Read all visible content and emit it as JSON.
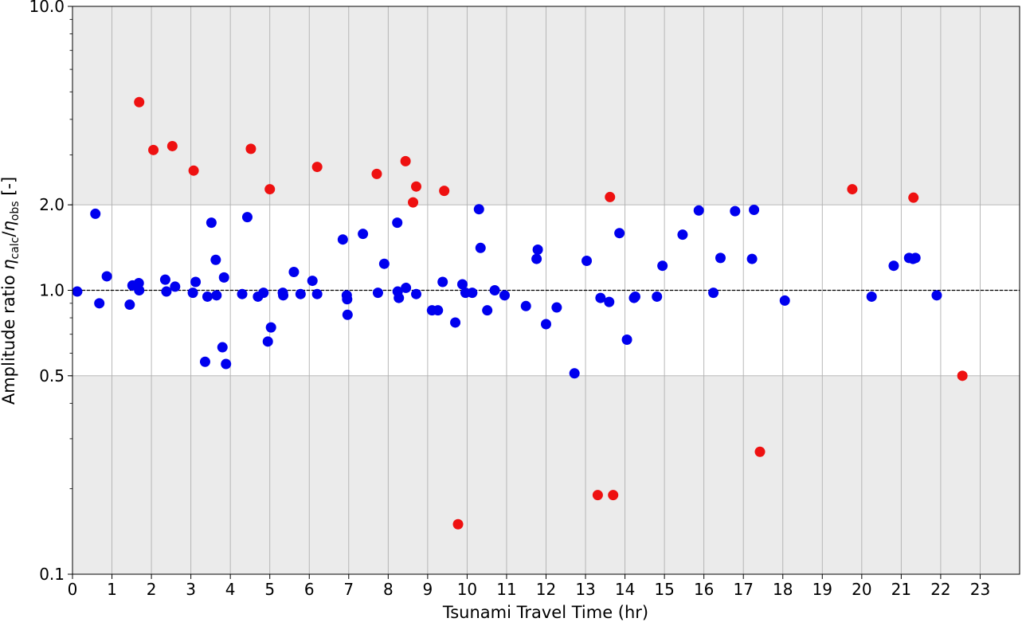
{
  "chart_data": {
    "type": "scatter",
    "title": "",
    "xlabel": "Tsunami Travel Time (hr)",
    "ylabel": {
      "prefix": "Amplitude ratio ",
      "eta1": "η",
      "sub1": "calc",
      "slash": "/",
      "eta2": "η",
      "sub2": "obs",
      "suffix": " [-]"
    },
    "xlim": [
      0,
      24
    ],
    "ylim": [
      0.1,
      10.0
    ],
    "yscale": "log",
    "grid": true,
    "xticks": [
      0,
      1,
      2,
      3,
      4,
      5,
      6,
      7,
      8,
      9,
      10,
      11,
      12,
      13,
      14,
      15,
      16,
      17,
      18,
      19,
      20,
      21,
      22,
      23
    ],
    "xtick_labels": [
      "0",
      "1",
      "2",
      "3",
      "4",
      "5",
      "6",
      "7",
      "8",
      "9",
      "10",
      "11",
      "12",
      "13",
      "14",
      "15",
      "16",
      "17",
      "18",
      "19",
      "20",
      "21",
      "22",
      "23"
    ],
    "yticks": [
      0.1,
      0.5,
      1.0,
      2.0,
      10.0
    ],
    "ytick_labels": [
      "0.1",
      "0.5",
      "1.0",
      "2.0",
      "10.0"
    ],
    "shaded_bands": [
      {
        "ymin": 2.0,
        "ymax": 10.0,
        "color": "#ebebeb"
      },
      {
        "ymin": 0.1,
        "ymax": 0.5,
        "color": "#ebebeb"
      }
    ],
    "reference_line": {
      "y": 1.0,
      "style": "dashed",
      "color": "#000000"
    },
    "series": [
      {
        "color": "#0000ee",
        "points": [
          [
            0.12,
            0.99
          ],
          [
            0.58,
            1.86
          ],
          [
            0.68,
            0.9
          ],
          [
            0.87,
            1.12
          ],
          [
            1.45,
            0.89
          ],
          [
            1.52,
            1.04
          ],
          [
            1.68,
            1.06
          ],
          [
            1.69,
            1.0
          ],
          [
            2.35,
            1.09
          ],
          [
            2.38,
            0.99
          ],
          [
            2.6,
            1.03
          ],
          [
            3.05,
            0.98
          ],
          [
            3.12,
            1.07
          ],
          [
            3.42,
            0.95
          ],
          [
            3.52,
            1.73
          ],
          [
            3.63,
            1.28
          ],
          [
            3.65,
            0.96
          ],
          [
            3.8,
            0.63
          ],
          [
            3.84,
            1.11
          ],
          [
            3.36,
            0.56
          ],
          [
            3.89,
            0.55
          ],
          [
            4.3,
            0.97
          ],
          [
            4.43,
            1.81
          ],
          [
            4.7,
            0.95
          ],
          [
            4.84,
            0.98
          ],
          [
            4.95,
            0.66
          ],
          [
            5.03,
            0.74
          ],
          [
            5.33,
            0.98
          ],
          [
            5.34,
            0.96
          ],
          [
            5.61,
            1.16
          ],
          [
            5.78,
            0.97
          ],
          [
            6.08,
            1.08
          ],
          [
            6.2,
            0.97
          ],
          [
            6.85,
            1.51
          ],
          [
            6.95,
            0.96
          ],
          [
            6.96,
            0.93
          ],
          [
            6.97,
            0.82
          ],
          [
            7.36,
            1.58
          ],
          [
            7.74,
            0.98
          ],
          [
            7.9,
            1.24
          ],
          [
            8.23,
            1.73
          ],
          [
            8.24,
            0.99
          ],
          [
            8.27,
            0.94
          ],
          [
            8.45,
            1.02
          ],
          [
            8.71,
            0.97
          ],
          [
            9.11,
            0.85
          ],
          [
            9.26,
            0.85
          ],
          [
            9.38,
            1.07
          ],
          [
            9.7,
            0.77
          ],
          [
            9.88,
            1.05
          ],
          [
            9.96,
            0.98
          ],
          [
            10.13,
            0.98
          ],
          [
            10.3,
            1.93
          ],
          [
            10.34,
            1.41
          ],
          [
            10.51,
            0.85
          ],
          [
            10.7,
            1.0
          ],
          [
            10.95,
            0.96
          ],
          [
            11.49,
            0.88
          ],
          [
            11.76,
            1.29
          ],
          [
            11.79,
            1.39
          ],
          [
            12.0,
            0.76
          ],
          [
            12.27,
            0.87
          ],
          [
            12.72,
            0.51
          ],
          [
            13.03,
            1.27
          ],
          [
            13.38,
            0.94
          ],
          [
            13.6,
            0.91
          ],
          [
            13.86,
            1.59
          ],
          [
            14.05,
            0.67
          ],
          [
            14.23,
            0.94
          ],
          [
            14.26,
            0.95
          ],
          [
            14.81,
            0.95
          ],
          [
            14.95,
            1.22
          ],
          [
            15.46,
            1.57
          ],
          [
            15.87,
            1.91
          ],
          [
            16.24,
            0.98
          ],
          [
            16.42,
            1.3
          ],
          [
            16.79,
            1.9
          ],
          [
            17.22,
            1.29
          ],
          [
            17.27,
            1.92
          ],
          [
            18.05,
            0.92
          ],
          [
            20.25,
            0.95
          ],
          [
            20.81,
            1.22
          ],
          [
            21.2,
            1.3
          ],
          [
            21.3,
            1.29
          ],
          [
            21.36,
            1.3
          ],
          [
            21.9,
            0.96
          ]
        ]
      },
      {
        "color": "#ee1111",
        "points": [
          [
            1.69,
            4.6
          ],
          [
            2.05,
            3.12
          ],
          [
            2.53,
            3.22
          ],
          [
            3.07,
            2.64
          ],
          [
            4.52,
            3.15
          ],
          [
            5.0,
            2.27
          ],
          [
            6.2,
            2.72
          ],
          [
            7.71,
            2.57
          ],
          [
            8.44,
            2.85
          ],
          [
            8.63,
            2.04
          ],
          [
            8.71,
            2.32
          ],
          [
            9.42,
            2.24
          ],
          [
            9.77,
            0.15
          ],
          [
            13.31,
            0.19
          ],
          [
            13.62,
            2.13
          ],
          [
            13.7,
            0.19
          ],
          [
            17.42,
            0.27
          ],
          [
            19.76,
            2.27
          ],
          [
            21.31,
            2.12
          ],
          [
            22.55,
            0.5
          ]
        ]
      }
    ]
  }
}
